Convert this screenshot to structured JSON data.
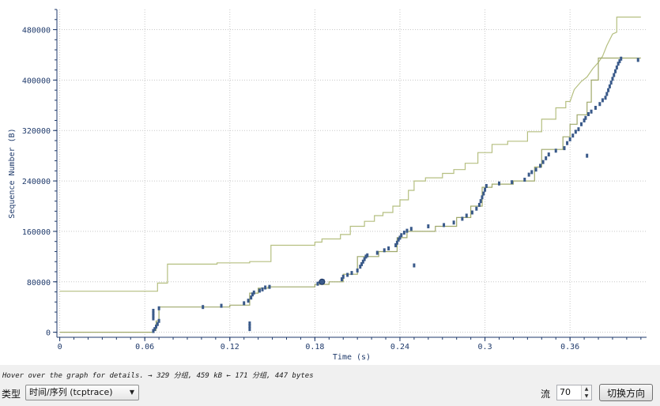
{
  "hint_text": "Hover over the graph for details. → 329 分组, 459 kB ← 171 分组, 447 bytes",
  "controls": {
    "type_label": "类型",
    "type_value": "时间/序列 (tcptrace)",
    "stream_label": "流",
    "stream_value": "70",
    "switch_direction_label": "切换方向"
  },
  "colors": {
    "data_points": "#3a5a8a",
    "window_line": "#b5bf80",
    "ack_line": "#9fa86a",
    "axis": "#1f3a6b",
    "grid": "#c8c8c8"
  },
  "icons": {
    "dropdown": "chevron-down-icon",
    "spin_up": "spin-up-icon",
    "spin_down": "spin-down-icon"
  },
  "chart_data": {
    "type": "scatter",
    "title": "",
    "xlabel": "Time (s)",
    "ylabel": "Sequence Number (B)",
    "xlim": [
      -0.002,
      0.414
    ],
    "ylim": [
      -8000,
      512000
    ],
    "xticks": [
      0,
      0.06,
      0.12,
      0.18,
      0.24,
      0.3,
      0.36
    ],
    "xtick_labels": [
      "0",
      "0.06",
      "0.12",
      "0.18",
      "0.24",
      "0.3",
      "0.36"
    ],
    "yticks": [
      0,
      80000,
      160000,
      240000,
      320000,
      400000,
      480000
    ],
    "ytick_labels": [
      "0",
      "80000",
      "160000",
      "240000",
      "320000",
      "400000",
      "480000"
    ],
    "grid": true,
    "series": [
      {
        "kind": "step",
        "points": [
          [
            0,
            65000
          ],
          [
            0.069,
            65000
          ],
          [
            0.069,
            78000
          ],
          [
            0.076,
            78000
          ],
          [
            0.076,
            108000
          ],
          [
            0.111,
            108000
          ],
          [
            0.111,
            110000
          ],
          [
            0.134,
            110000
          ],
          [
            0.134,
            112000
          ],
          [
            0.149,
            112000
          ],
          [
            0.149,
            138000
          ],
          [
            0.18,
            138000
          ],
          [
            0.18,
            143000
          ],
          [
            0.185,
            143000
          ],
          [
            0.185,
            148000
          ],
          [
            0.198,
            148000
          ],
          [
            0.198,
            155000
          ],
          [
            0.205,
            155000
          ],
          [
            0.205,
            168000
          ],
          [
            0.215,
            168000
          ],
          [
            0.215,
            176000
          ],
          [
            0.222,
            176000
          ],
          [
            0.222,
            185000
          ],
          [
            0.228,
            185000
          ],
          [
            0.228,
            190000
          ],
          [
            0.235,
            190000
          ],
          [
            0.235,
            200000
          ],
          [
            0.24,
            200000
          ],
          [
            0.24,
            210000
          ],
          [
            0.246,
            210000
          ],
          [
            0.246,
            225000
          ],
          [
            0.25,
            225000
          ],
          [
            0.25,
            240000
          ],
          [
            0.258,
            240000
          ],
          [
            0.258,
            245000
          ],
          [
            0.27,
            245000
          ],
          [
            0.27,
            252000
          ],
          [
            0.278,
            252000
          ],
          [
            0.278,
            258000
          ],
          [
            0.286,
            258000
          ],
          [
            0.286,
            268000
          ],
          [
            0.295,
            268000
          ],
          [
            0.295,
            285000
          ],
          [
            0.305,
            285000
          ],
          [
            0.305,
            298000
          ],
          [
            0.316,
            298000
          ],
          [
            0.316,
            303000
          ],
          [
            0.33,
            303000
          ],
          [
            0.33,
            318000
          ],
          [
            0.34,
            318000
          ],
          [
            0.34,
            338000
          ],
          [
            0.35,
            338000
          ],
          [
            0.35,
            356000
          ],
          [
            0.357,
            356000
          ],
          [
            0.357,
            366000
          ],
          [
            0.36,
            366000
          ],
          [
            0.363,
            385000
          ],
          [
            0.368,
            398000
          ],
          [
            0.372,
            405000
          ],
          [
            0.376,
            418000
          ],
          [
            0.38,
            428000
          ],
          [
            0.383,
            438000
          ],
          [
            0.386,
            455000
          ],
          [
            0.39,
            473000
          ],
          [
            0.393,
            476000
          ],
          [
            0.393,
            500000
          ],
          [
            0.41,
            500000
          ]
        ]
      },
      {
        "kind": "step",
        "points": [
          [
            0,
            0
          ],
          [
            0.066,
            0
          ],
          [
            0.066,
            3000
          ],
          [
            0.068,
            3000
          ],
          [
            0.068,
            18000
          ],
          [
            0.07,
            18000
          ],
          [
            0.07,
            40000
          ],
          [
            0.12,
            40000
          ],
          [
            0.12,
            43000
          ],
          [
            0.134,
            43000
          ],
          [
            0.134,
            62000
          ],
          [
            0.14,
            62000
          ],
          [
            0.14,
            70000
          ],
          [
            0.147,
            70000
          ],
          [
            0.147,
            72000
          ],
          [
            0.18,
            72000
          ],
          [
            0.18,
            76000
          ],
          [
            0.19,
            76000
          ],
          [
            0.19,
            80000
          ],
          [
            0.2,
            80000
          ],
          [
            0.2,
            92000
          ],
          [
            0.21,
            92000
          ],
          [
            0.21,
            120000
          ],
          [
            0.225,
            120000
          ],
          [
            0.225,
            128000
          ],
          [
            0.238,
            128000
          ],
          [
            0.238,
            150000
          ],
          [
            0.245,
            150000
          ],
          [
            0.245,
            160000
          ],
          [
            0.265,
            160000
          ],
          [
            0.265,
            168000
          ],
          [
            0.28,
            168000
          ],
          [
            0.28,
            182000
          ],
          [
            0.29,
            182000
          ],
          [
            0.29,
            200000
          ],
          [
            0.298,
            200000
          ],
          [
            0.298,
            230000
          ],
          [
            0.305,
            230000
          ],
          [
            0.305,
            235000
          ],
          [
            0.32,
            235000
          ],
          [
            0.32,
            240000
          ],
          [
            0.335,
            240000
          ],
          [
            0.335,
            262000
          ],
          [
            0.34,
            262000
          ],
          [
            0.34,
            290000
          ],
          [
            0.355,
            290000
          ],
          [
            0.355,
            310000
          ],
          [
            0.36,
            310000
          ],
          [
            0.36,
            330000
          ],
          [
            0.365,
            330000
          ],
          [
            0.365,
            345000
          ],
          [
            0.372,
            345000
          ],
          [
            0.372,
            365000
          ],
          [
            0.375,
            365000
          ],
          [
            0.375,
            400000
          ],
          [
            0.38,
            400000
          ],
          [
            0.38,
            435000
          ],
          [
            0.41,
            435000
          ]
        ]
      },
      {
        "kind": "points",
        "points": [
          [
            0.066,
            2000
          ],
          [
            0.067,
            5000
          ],
          [
            0.068,
            9000
          ],
          [
            0.069,
            13000
          ],
          [
            0.07,
            18000
          ],
          [
            0.066,
            22000
          ],
          [
            0.066,
            26000
          ],
          [
            0.066,
            30000
          ],
          [
            0.066,
            34000
          ],
          [
            0.07,
            38000
          ],
          [
            0.101,
            40000
          ],
          [
            0.114,
            42000
          ],
          [
            0.134,
            5000
          ],
          [
            0.134,
            10000
          ],
          [
            0.134,
            14000
          ],
          [
            0.13,
            46000
          ],
          [
            0.133,
            50000
          ],
          [
            0.135,
            55000
          ],
          [
            0.136,
            60000
          ],
          [
            0.137,
            63000
          ],
          [
            0.141,
            66000
          ],
          [
            0.143,
            68000
          ],
          [
            0.145,
            71000
          ],
          [
            0.148,
            72000
          ],
          [
            0.182,
            77000
          ],
          [
            0.186,
            81000
          ],
          [
            0.199,
            84000
          ],
          [
            0.2,
            88000
          ],
          [
            0.203,
            91000
          ],
          [
            0.206,
            94000
          ],
          [
            0.21,
            98000
          ],
          [
            0.212,
            104000
          ],
          [
            0.213,
            108000
          ],
          [
            0.214,
            112000
          ],
          [
            0.215,
            116000
          ],
          [
            0.216,
            120000
          ],
          [
            0.217,
            122000
          ],
          [
            0.224,
            126000
          ],
          [
            0.229,
            130000
          ],
          [
            0.232,
            133000
          ],
          [
            0.237,
            138000
          ],
          [
            0.238,
            142000
          ],
          [
            0.239,
            147000
          ],
          [
            0.24,
            150000
          ],
          [
            0.241,
            154000
          ],
          [
            0.243,
            158000
          ],
          [
            0.245,
            161000
          ],
          [
            0.248,
            164000
          ],
          [
            0.25,
            106000
          ],
          [
            0.26,
            168000
          ],
          [
            0.271,
            170000
          ],
          [
            0.278,
            174000
          ],
          [
            0.284,
            180000
          ],
          [
            0.287,
            185000
          ],
          [
            0.291,
            190000
          ],
          [
            0.294,
            196000
          ],
          [
            0.296,
            202000
          ],
          [
            0.297,
            208000
          ],
          [
            0.298,
            214000
          ],
          [
            0.299,
            220000
          ],
          [
            0.3,
            226000
          ],
          [
            0.301,
            232000
          ],
          [
            0.31,
            236000
          ],
          [
            0.319,
            238000
          ],
          [
            0.328,
            242000
          ],
          [
            0.331,
            250000
          ],
          [
            0.333,
            254000
          ],
          [
            0.336,
            258000
          ],
          [
            0.339,
            264000
          ],
          [
            0.341,
            270000
          ],
          [
            0.343,
            276000
          ],
          [
            0.345,
            282000
          ],
          [
            0.35,
            288000
          ],
          [
            0.356,
            292000
          ],
          [
            0.358,
            300000
          ],
          [
            0.36,
            306000
          ],
          [
            0.362,
            312000
          ],
          [
            0.364,
            318000
          ],
          [
            0.366,
            322000
          ],
          [
            0.368,
            330000
          ],
          [
            0.37,
            336000
          ],
          [
            0.372,
            280000
          ],
          [
            0.371,
            340000
          ],
          [
            0.373,
            346000
          ],
          [
            0.375,
            350000
          ],
          [
            0.378,
            356000
          ],
          [
            0.381,
            362000
          ],
          [
            0.383,
            368000
          ],
          [
            0.385,
            372000
          ],
          [
            0.386,
            378000
          ],
          [
            0.387,
            384000
          ],
          [
            0.388,
            390000
          ],
          [
            0.389,
            396000
          ],
          [
            0.39,
            402000
          ],
          [
            0.391,
            408000
          ],
          [
            0.392,
            414000
          ],
          [
            0.393,
            420000
          ],
          [
            0.394,
            426000
          ],
          [
            0.395,
            430000
          ],
          [
            0.396,
            434000
          ],
          [
            0.408,
            432000
          ]
        ]
      },
      {
        "kind": "marker",
        "points": [
          [
            0.185,
            80000
          ]
        ]
      }
    ]
  }
}
